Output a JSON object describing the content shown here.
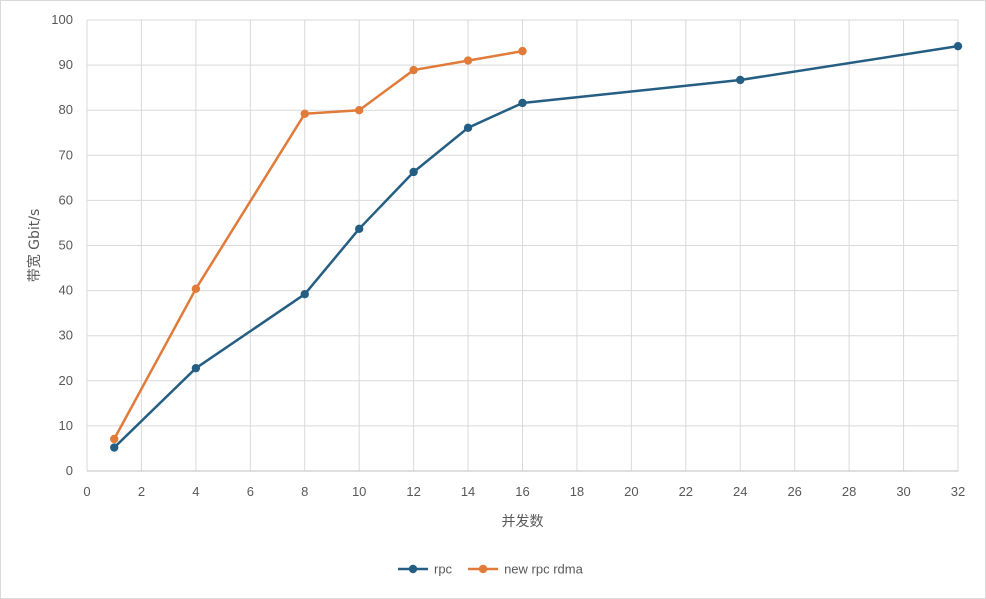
{
  "chart_data": {
    "type": "line",
    "title": "",
    "xlabel": "并发数",
    "ylabel": "带宽 Gbit/s",
    "xlim": [
      0,
      32
    ],
    "ylim": [
      0,
      100
    ],
    "x_ticks": [
      0,
      2,
      4,
      6,
      8,
      10,
      12,
      14,
      16,
      18,
      20,
      22,
      24,
      26,
      28,
      30,
      32
    ],
    "y_ticks": [
      0,
      10,
      20,
      30,
      40,
      50,
      60,
      70,
      80,
      90,
      100
    ],
    "grid": true,
    "legend_position": "bottom",
    "series": [
      {
        "name": "rpc",
        "color": "#255e83",
        "points": [
          {
            "x": 1,
            "y": 5.2
          },
          {
            "x": 4,
            "y": 22.8
          },
          {
            "x": 8,
            "y": 39.2
          },
          {
            "x": 10,
            "y": 53.7
          },
          {
            "x": 12,
            "y": 66.3
          },
          {
            "x": 14,
            "y": 76.1
          },
          {
            "x": 16,
            "y": 81.6
          },
          {
            "x": 24,
            "y": 86.7
          },
          {
            "x": 32,
            "y": 94.2
          }
        ]
      },
      {
        "name": "new rpc rdma",
        "color": "#e07b39",
        "points": [
          {
            "x": 1,
            "y": 7.1
          },
          {
            "x": 4,
            "y": 40.4
          },
          {
            "x": 8,
            "y": 79.2
          },
          {
            "x": 10,
            "y": 80.0
          },
          {
            "x": 12,
            "y": 88.9
          },
          {
            "x": 14,
            "y": 91.0
          },
          {
            "x": 16,
            "y": 93.1
          }
        ]
      }
    ]
  }
}
